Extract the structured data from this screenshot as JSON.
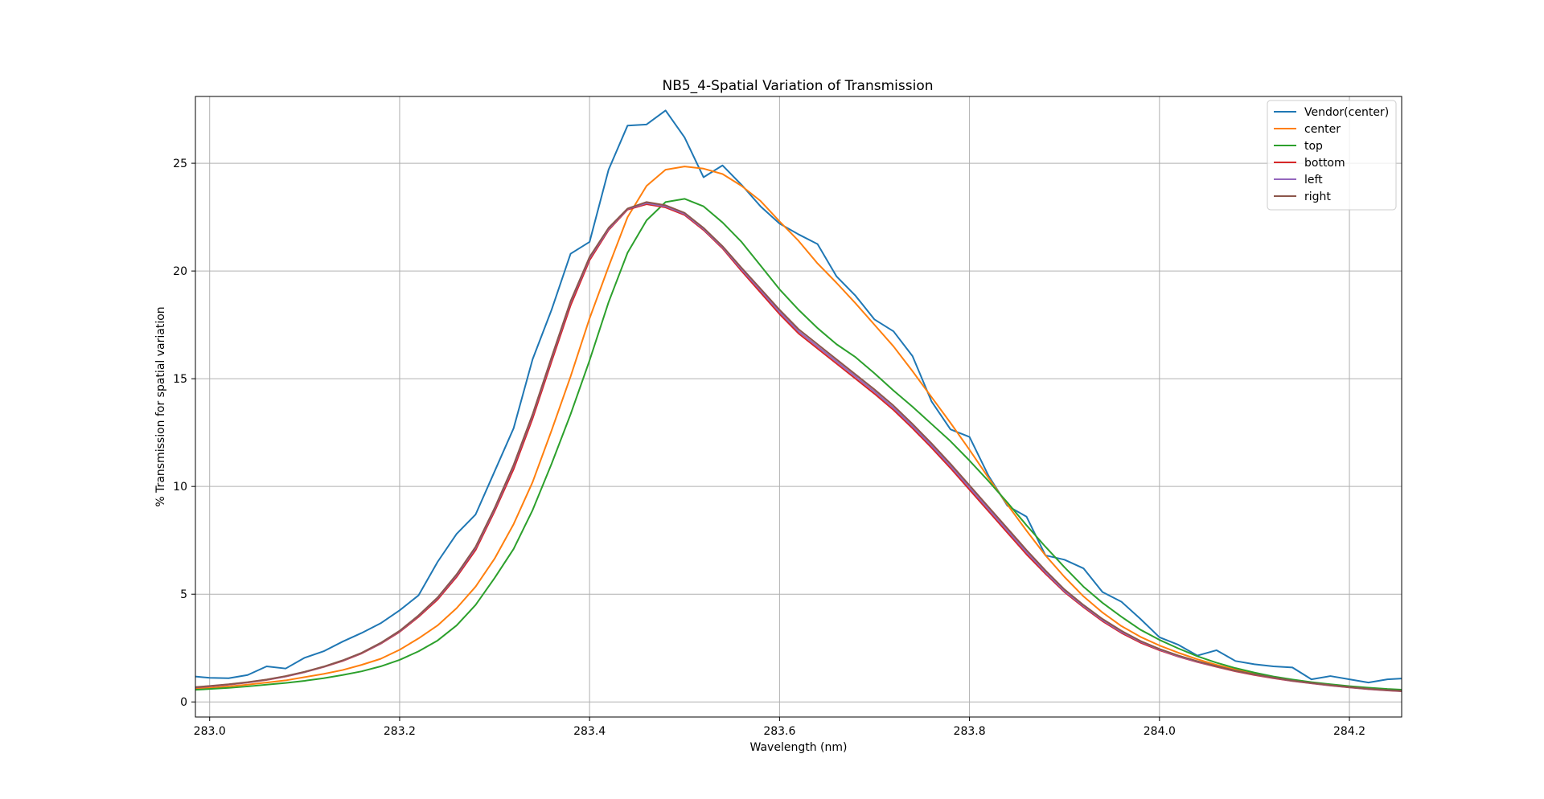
{
  "chart_data": {
    "type": "line",
    "title": "NB5_4-Spatial Variation of Transmission",
    "xlabel": "Wavelength (nm)",
    "ylabel": "% Transmission for spatial variation",
    "xlim": [
      282.985,
      284.255
    ],
    "ylim": [
      -0.7,
      28.1
    ],
    "xticks": [
      283.0,
      283.2,
      283.4,
      283.6,
      283.8,
      284.0,
      284.2
    ],
    "xtick_labels": [
      "283.0",
      "283.2",
      "283.4",
      "283.6",
      "283.8",
      "284.0",
      "284.2"
    ],
    "yticks": [
      0,
      5,
      10,
      15,
      20,
      25
    ],
    "ytick_labels": [
      "0",
      "5",
      "10",
      "15",
      "20",
      "25"
    ],
    "grid": true,
    "legend_position": "top-right",
    "series": [
      {
        "name": "Vendor(center)",
        "color": "#1f77b4",
        "x": [
          282.98,
          283.0,
          283.02,
          283.04,
          283.06,
          283.08,
          283.1,
          283.12,
          283.14,
          283.16,
          283.18,
          283.2,
          283.22,
          283.24,
          283.26,
          283.28,
          283.3,
          283.32,
          283.34,
          283.36,
          283.38,
          283.4,
          283.42,
          283.44,
          283.46,
          283.48,
          283.5,
          283.52,
          283.54,
          283.56,
          283.58,
          283.6,
          283.62,
          283.64,
          283.66,
          283.68,
          283.7,
          283.72,
          283.74,
          283.76,
          283.78,
          283.8,
          283.82,
          283.84,
          283.86,
          283.88,
          283.9,
          283.92,
          283.94,
          283.96,
          283.98,
          284.0,
          284.02,
          284.04,
          284.06,
          284.08,
          284.1,
          284.12,
          284.14,
          284.16,
          284.18,
          284.2,
          284.22,
          284.24,
          284.26
        ],
        "y": [
          1.2,
          1.12,
          1.1,
          1.25,
          1.65,
          1.55,
          2.05,
          2.35,
          2.8,
          3.2,
          3.65,
          4.25,
          4.95,
          6.5,
          7.8,
          8.7,
          10.7,
          12.7,
          15.9,
          18.2,
          20.8,
          21.35,
          24.7,
          26.75,
          26.8,
          27.45,
          26.2,
          24.35,
          24.9,
          24.0,
          23.0,
          22.2,
          21.7,
          21.25,
          19.75,
          18.85,
          17.75,
          17.2,
          16.05,
          13.95,
          12.65,
          12.3,
          10.5,
          9.1,
          8.6,
          6.8,
          6.6,
          6.2,
          5.1,
          4.65,
          3.85,
          3.0,
          2.65,
          2.15,
          2.4,
          1.9,
          1.75,
          1.65,
          1.6,
          1.05,
          1.2,
          1.05,
          0.9,
          1.05,
          1.1
        ]
      },
      {
        "name": "center",
        "color": "#ff7f0e",
        "x": [
          282.98,
          283.0,
          283.02,
          283.04,
          283.06,
          283.08,
          283.1,
          283.12,
          283.14,
          283.16,
          283.18,
          283.2,
          283.22,
          283.24,
          283.26,
          283.28,
          283.3,
          283.32,
          283.34,
          283.36,
          283.38,
          283.4,
          283.42,
          283.44,
          283.46,
          283.48,
          283.5,
          283.52,
          283.54,
          283.56,
          283.58,
          283.6,
          283.62,
          283.64,
          283.66,
          283.68,
          283.7,
          283.72,
          283.74,
          283.76,
          283.78,
          283.8,
          283.82,
          283.84,
          283.86,
          283.88,
          283.9,
          283.92,
          283.94,
          283.96,
          283.98,
          284.0,
          284.02,
          284.04,
          284.06,
          284.08,
          284.1,
          284.12,
          284.14,
          284.16,
          284.18,
          284.2,
          284.22,
          284.24,
          284.26
        ],
        "y": [
          0.6,
          0.65,
          0.72,
          0.8,
          0.9,
          1.0,
          1.15,
          1.3,
          1.48,
          1.72,
          2.0,
          2.42,
          2.95,
          3.55,
          4.35,
          5.35,
          6.65,
          8.25,
          10.2,
          12.6,
          15.1,
          17.8,
          20.2,
          22.5,
          23.95,
          24.7,
          24.85,
          24.75,
          24.5,
          23.95,
          23.25,
          22.3,
          21.4,
          20.35,
          19.45,
          18.5,
          17.5,
          16.5,
          15.35,
          14.15,
          12.95,
          11.7,
          10.4,
          9.15,
          7.95,
          6.8,
          5.8,
          4.9,
          4.15,
          3.52,
          3.02,
          2.62,
          2.28,
          1.98,
          1.72,
          1.5,
          1.3,
          1.14,
          1.0,
          0.88,
          0.78,
          0.7,
          0.63,
          0.58,
          0.55
        ]
      },
      {
        "name": "top",
        "color": "#2ca02c",
        "x": [
          282.98,
          283.0,
          283.02,
          283.04,
          283.06,
          283.08,
          283.1,
          283.12,
          283.14,
          283.16,
          283.18,
          283.2,
          283.22,
          283.24,
          283.26,
          283.28,
          283.3,
          283.32,
          283.34,
          283.36,
          283.38,
          283.4,
          283.42,
          283.44,
          283.46,
          283.48,
          283.5,
          283.52,
          283.54,
          283.56,
          283.58,
          283.6,
          283.62,
          283.64,
          283.66,
          283.68,
          283.7,
          283.72,
          283.74,
          283.76,
          283.78,
          283.8,
          283.82,
          283.84,
          283.86,
          283.88,
          283.9,
          283.92,
          283.94,
          283.96,
          283.98,
          284.0,
          284.02,
          284.04,
          284.06,
          284.08,
          284.1,
          284.12,
          284.14,
          284.16,
          284.18,
          284.2,
          284.22,
          284.24,
          284.26
        ],
        "y": [
          0.55,
          0.6,
          0.65,
          0.72,
          0.8,
          0.88,
          0.98,
          1.1,
          1.25,
          1.42,
          1.65,
          1.95,
          2.35,
          2.85,
          3.55,
          4.5,
          5.75,
          7.1,
          8.9,
          11.05,
          13.35,
          15.85,
          18.55,
          20.85,
          22.35,
          23.2,
          23.35,
          23.0,
          22.25,
          21.35,
          20.25,
          19.15,
          18.2,
          17.35,
          16.6,
          16.0,
          15.25,
          14.45,
          13.7,
          12.9,
          12.1,
          11.2,
          10.25,
          9.25,
          8.2,
          7.2,
          6.25,
          5.35,
          4.6,
          3.95,
          3.35,
          2.88,
          2.48,
          2.12,
          1.82,
          1.57,
          1.36,
          1.18,
          1.04,
          0.92,
          0.82,
          0.73,
          0.66,
          0.6,
          0.56
        ]
      },
      {
        "name": "bottom",
        "color": "#d62728",
        "x": [
          282.98,
          283.0,
          283.02,
          283.04,
          283.06,
          283.08,
          283.1,
          283.12,
          283.14,
          283.16,
          283.18,
          283.2,
          283.22,
          283.24,
          283.26,
          283.28,
          283.3,
          283.32,
          283.34,
          283.36,
          283.38,
          283.4,
          283.42,
          283.44,
          283.46,
          283.48,
          283.5,
          283.52,
          283.54,
          283.56,
          283.58,
          283.6,
          283.62,
          283.64,
          283.66,
          283.68,
          283.7,
          283.72,
          283.74,
          283.76,
          283.78,
          283.8,
          283.82,
          283.84,
          283.86,
          283.88,
          283.9,
          283.92,
          283.94,
          283.96,
          283.98,
          284.0,
          284.02,
          284.04,
          284.06,
          284.08,
          284.1,
          284.12,
          284.14,
          284.16,
          284.18,
          284.2,
          284.22,
          284.24,
          284.26
        ],
        "y": [
          0.65,
          0.72,
          0.8,
          0.9,
          1.02,
          1.18,
          1.38,
          1.62,
          1.9,
          2.25,
          2.7,
          3.25,
          3.95,
          4.75,
          5.8,
          7.05,
          8.85,
          10.8,
          13.15,
          15.8,
          18.4,
          20.5,
          21.9,
          22.85,
          23.1,
          22.95,
          22.6,
          21.9,
          21.05,
          20.0,
          19.0,
          18.0,
          17.1,
          16.4,
          15.7,
          15.0,
          14.3,
          13.55,
          12.7,
          11.8,
          10.85,
          9.85,
          8.85,
          7.85,
          6.85,
          5.95,
          5.1,
          4.4,
          3.75,
          3.2,
          2.75,
          2.4,
          2.1,
          1.85,
          1.63,
          1.42,
          1.25,
          1.1,
          0.97,
          0.86,
          0.76,
          0.67,
          0.59,
          0.53,
          0.48
        ]
      },
      {
        "name": "left",
        "color": "#9467bd",
        "x": [
          282.98,
          283.0,
          283.02,
          283.04,
          283.06,
          283.08,
          283.1,
          283.12,
          283.14,
          283.16,
          283.18,
          283.2,
          283.22,
          283.24,
          283.26,
          283.28,
          283.3,
          283.32,
          283.34,
          283.36,
          283.38,
          283.4,
          283.42,
          283.44,
          283.46,
          283.48,
          283.5,
          283.52,
          283.54,
          283.56,
          283.58,
          283.6,
          283.62,
          283.64,
          283.66,
          283.68,
          283.7,
          283.72,
          283.74,
          283.76,
          283.78,
          283.8,
          283.82,
          283.84,
          283.86,
          283.88,
          283.9,
          283.92,
          283.94,
          283.96,
          283.98,
          284.0,
          284.02,
          284.04,
          284.06,
          284.08,
          284.1,
          284.12,
          284.14,
          284.16,
          284.18,
          284.2,
          284.22,
          284.24,
          284.26
        ],
        "y": [
          0.66,
          0.73,
          0.81,
          0.91,
          1.03,
          1.19,
          1.39,
          1.63,
          1.92,
          2.27,
          2.72,
          3.28,
          4.0,
          4.82,
          5.88,
          7.15,
          8.95,
          10.95,
          13.3,
          15.95,
          18.55,
          20.6,
          21.95,
          22.88,
          23.15,
          23.0,
          22.65,
          21.95,
          21.1,
          20.08,
          19.1,
          18.1,
          17.2,
          16.5,
          15.8,
          15.1,
          14.4,
          13.65,
          12.8,
          11.9,
          10.95,
          9.95,
          8.95,
          7.95,
          6.95,
          6.02,
          5.15,
          4.45,
          3.8,
          3.25,
          2.8,
          2.43,
          2.12,
          1.87,
          1.65,
          1.44,
          1.27,
          1.12,
          0.98,
          0.87,
          0.77,
          0.68,
          0.6,
          0.54,
          0.49
        ]
      },
      {
        "name": "right",
        "color": "#8c564b",
        "x": [
          282.98,
          283.0,
          283.02,
          283.04,
          283.06,
          283.08,
          283.1,
          283.12,
          283.14,
          283.16,
          283.18,
          283.2,
          283.22,
          283.24,
          283.26,
          283.28,
          283.3,
          283.32,
          283.34,
          283.36,
          283.38,
          283.4,
          283.42,
          283.44,
          283.46,
          283.48,
          283.5,
          283.52,
          283.54,
          283.56,
          283.58,
          283.6,
          283.62,
          283.64,
          283.66,
          283.68,
          283.7,
          283.72,
          283.74,
          283.76,
          283.78,
          283.8,
          283.82,
          283.84,
          283.86,
          283.88,
          283.9,
          283.92,
          283.94,
          283.96,
          283.98,
          284.0,
          284.02,
          284.04,
          284.06,
          284.08,
          284.1,
          284.12,
          284.14,
          284.16,
          284.18,
          284.2,
          284.22,
          284.24,
          284.26
        ],
        "y": [
          0.67,
          0.74,
          0.82,
          0.92,
          1.04,
          1.2,
          1.4,
          1.64,
          1.93,
          2.28,
          2.74,
          3.3,
          4.02,
          4.85,
          5.92,
          7.2,
          9.0,
          11.0,
          13.35,
          16.0,
          18.6,
          20.65,
          22.0,
          22.9,
          23.2,
          23.05,
          22.7,
          22.0,
          21.15,
          20.15,
          19.18,
          18.2,
          17.3,
          16.6,
          15.9,
          15.2,
          14.5,
          13.75,
          12.9,
          12.0,
          11.05,
          10.05,
          9.05,
          8.05,
          7.05,
          6.1,
          5.22,
          4.5,
          3.85,
          3.3,
          2.83,
          2.46,
          2.15,
          1.89,
          1.66,
          1.45,
          1.28,
          1.13,
          0.99,
          0.88,
          0.78,
          0.69,
          0.61,
          0.55,
          0.5
        ]
      }
    ]
  }
}
